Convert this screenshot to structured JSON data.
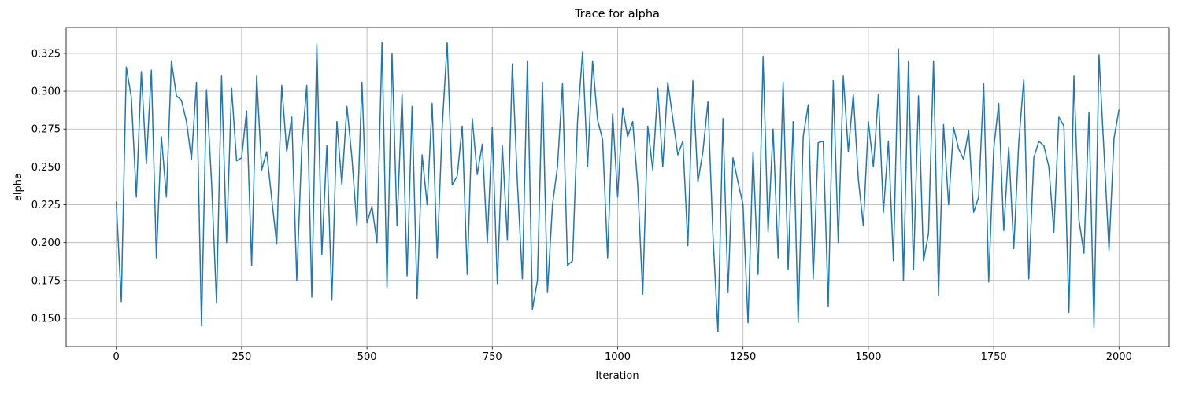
{
  "chart_data": {
    "type": "line",
    "title": "Trace for alpha",
    "xlabel": "Iteration",
    "ylabel": "alpha",
    "color": "#1f77b4",
    "grid": true,
    "xlim": [
      -100,
      2100
    ],
    "ylim": [
      0.1313,
      0.3421
    ],
    "xticks": [
      0,
      250,
      500,
      750,
      1000,
      1250,
      1500,
      1750,
      2000
    ],
    "yticks": [
      {
        "value": 0.15,
        "label": "0.150"
      },
      0.175,
      {
        "value": 0.2,
        "label": "0.200"
      },
      0.225,
      {
        "value": 0.25,
        "label": "0.250"
      },
      0.275,
      {
        "value": 0.3,
        "label": "0.300"
      },
      0.325
    ],
    "x": [
      0,
      10,
      20,
      30,
      40,
      50,
      60,
      70,
      80,
      90,
      100,
      110,
      120,
      130,
      140,
      150,
      160,
      170,
      180,
      190,
      200,
      210,
      220,
      230,
      240,
      250,
      260,
      270,
      280,
      290,
      300,
      310,
      320,
      330,
      340,
      350,
      360,
      370,
      380,
      390,
      400,
      410,
      420,
      430,
      440,
      450,
      460,
      470,
      480,
      490,
      500,
      510,
      520,
      530,
      540,
      550,
      560,
      570,
      580,
      590,
      600,
      610,
      620,
      630,
      640,
      650,
      660,
      670,
      680,
      690,
      700,
      710,
      720,
      730,
      740,
      750,
      760,
      770,
      780,
      790,
      800,
      810,
      820,
      830,
      840,
      850,
      860,
      870,
      880,
      890,
      900,
      910,
      920,
      930,
      940,
      950,
      960,
      970,
      980,
      990,
      1000,
      1010,
      1020,
      1030,
      1040,
      1050,
      1060,
      1070,
      1080,
      1090,
      1100,
      1110,
      1120,
      1130,
      1140,
      1150,
      1160,
      1170,
      1180,
      1190,
      1200,
      1210,
      1220,
      1230,
      1240,
      1250,
      1260,
      1270,
      1280,
      1290,
      1300,
      1310,
      1320,
      1330,
      1340,
      1350,
      1360,
      1370,
      1380,
      1390,
      1400,
      1410,
      1420,
      1430,
      1440,
      1450,
      1460,
      1470,
      1480,
      1490,
      1500,
      1510,
      1520,
      1530,
      1540,
      1550,
      1560,
      1570,
      1580,
      1590,
      1600,
      1610,
      1620,
      1630,
      1640,
      1650,
      1660,
      1670,
      1680,
      1690,
      1700,
      1710,
      1720,
      1730,
      1740,
      1750,
      1760,
      1770,
      1780,
      1790,
      1800,
      1810,
      1820,
      1830,
      1840,
      1850,
      1860,
      1870,
      1880,
      1890,
      1900,
      1910,
      1920,
      1930,
      1940,
      1950,
      1960,
      1970,
      1980,
      1990,
      2000
    ],
    "values": [
      0.227,
      0.161,
      0.316,
      0.296,
      0.23,
      0.313,
      0.252,
      0.314,
      0.19,
      0.27,
      0.23,
      0.32,
      0.297,
      0.294,
      0.28,
      0.255,
      0.306,
      0.145,
      0.301,
      0.24,
      0.16,
      0.31,
      0.2,
      0.302,
      0.254,
      0.256,
      0.287,
      0.185,
      0.31,
      0.248,
      0.26,
      0.229,
      0.199,
      0.304,
      0.26,
      0.283,
      0.175,
      0.263,
      0.304,
      0.164,
      0.331,
      0.192,
      0.264,
      0.162,
      0.28,
      0.238,
      0.29,
      0.256,
      0.211,
      0.306,
      0.213,
      0.224,
      0.2,
      0.332,
      0.17,
      0.325,
      0.211,
      0.298,
      0.178,
      0.29,
      0.163,
      0.258,
      0.225,
      0.292,
      0.19,
      0.276,
      0.332,
      0.238,
      0.244,
      0.277,
      0.179,
      0.282,
      0.245,
      0.265,
      0.2,
      0.276,
      0.173,
      0.264,
      0.202,
      0.318,
      0.24,
      0.176,
      0.32,
      0.156,
      0.175,
      0.306,
      0.167,
      0.225,
      0.25,
      0.305,
      0.185,
      0.188,
      0.28,
      0.326,
      0.25,
      0.32,
      0.281,
      0.268,
      0.19,
      0.285,
      0.23,
      0.289,
      0.27,
      0.28,
      0.238,
      0.166,
      0.277,
      0.248,
      0.302,
      0.25,
      0.306,
      0.282,
      0.258,
      0.267,
      0.198,
      0.307,
      0.24,
      0.26,
      0.293,
      0.205,
      0.141,
      0.282,
      0.167,
      0.256,
      0.24,
      0.225,
      0.147,
      0.26,
      0.179,
      0.323,
      0.207,
      0.275,
      0.19,
      0.306,
      0.182,
      0.28,
      0.147,
      0.27,
      0.291,
      0.176,
      0.266,
      0.267,
      0.158,
      0.307,
      0.2,
      0.31,
      0.26,
      0.298,
      0.242,
      0.211,
      0.28,
      0.25,
      0.298,
      0.22,
      0.267,
      0.188,
      0.328,
      0.175,
      0.32,
      0.182,
      0.297,
      0.188,
      0.206,
      0.32,
      0.165,
      0.278,
      0.225,
      0.276,
      0.262,
      0.255,
      0.274,
      0.22,
      0.23,
      0.305,
      0.174,
      0.262,
      0.292,
      0.208,
      0.263,
      0.196,
      0.266,
      0.308,
      0.176,
      0.256,
      0.267,
      0.264,
      0.25,
      0.207,
      0.283,
      0.277,
      0.154,
      0.31,
      0.215,
      0.193,
      0.286,
      0.144,
      0.324,
      0.26,
      0.195,
      0.269,
      0.288
    ]
  }
}
